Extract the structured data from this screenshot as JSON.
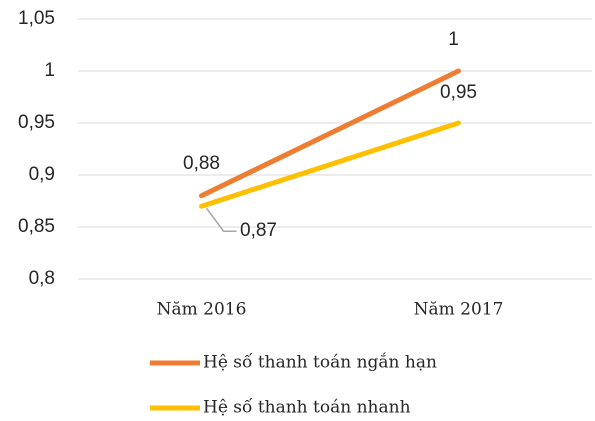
{
  "chart_data": {
    "type": "line",
    "categories": [
      "Năm 2016",
      "Năm 2017"
    ],
    "series": [
      {
        "name": "Hệ số thanh toán ngắn hạn",
        "color": "#ed7d31",
        "values": [
          0.88,
          1
        ],
        "value_labels": [
          "0,88",
          "1"
        ]
      },
      {
        "name": "Hệ số thanh toán nhanh",
        "color": "#ffc000",
        "values": [
          0.87,
          0.95
        ],
        "value_labels": [
          "0,87",
          "0,95"
        ]
      }
    ],
    "ylim": [
      0.8,
      1.05
    ],
    "yticks": [
      {
        "value": 0.8,
        "label": "0,8"
      },
      {
        "value": 0.85,
        "label": "0,85"
      },
      {
        "value": 0.9,
        "label": "0,9"
      },
      {
        "value": 0.95,
        "label": "0,95"
      },
      1,
      {
        "value": 1.05,
        "label": "1,05"
      }
    ],
    "grid": true,
    "legend": "bottom"
  }
}
